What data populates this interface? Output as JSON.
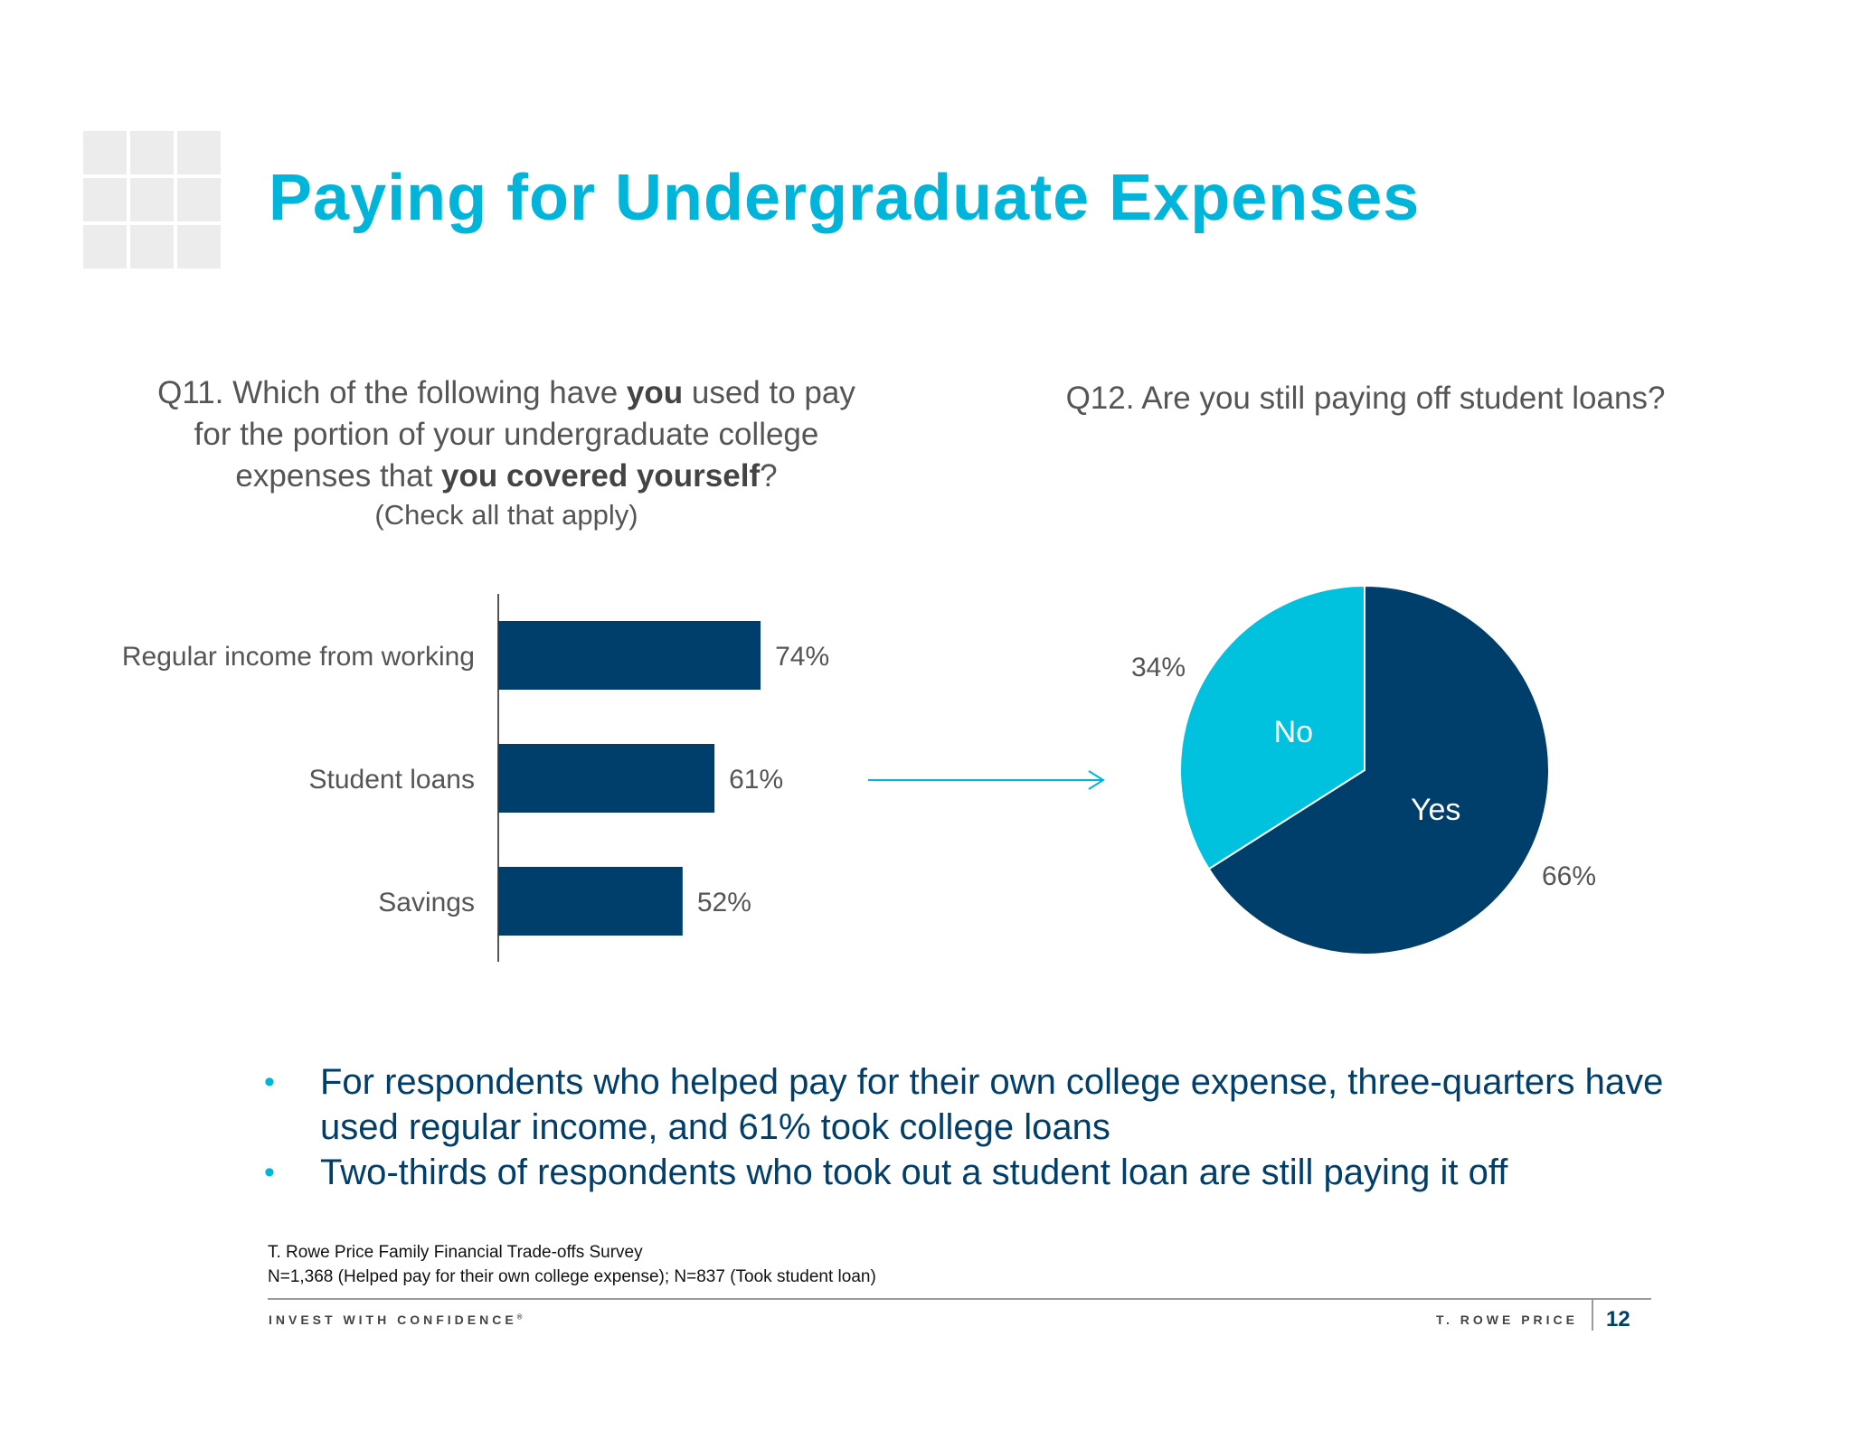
{
  "slide": {
    "title": "Paying for Undergraduate Expenses",
    "q11": {
      "line1_pre": "Q11. Which of the following have ",
      "line1_bold": "you",
      "line1_post": " used to pay",
      "line2": "for the portion of your undergraduate college",
      "line3_pre": "expenses that ",
      "line3_bold": "you covered yourself",
      "line3_post": "?",
      "note": "(Check all that apply)"
    },
    "q12": "Q12. Are you still paying off student loans?",
    "bullets": [
      "For respondents who helped pay for their own college expense, three-quarters have used regular income, and 61% took college loans",
      "Two-thirds of respondents who took out a student loan are still paying it off"
    ],
    "bullet_char": "•",
    "source_line1": "T. Rowe Price Family Financial Trade-offs Survey",
    "source_line2": "N=1,368 (Helped pay for their own college expense); N=837 (Took student loan)",
    "footer_left": "INVEST WITH CONFIDENCE",
    "footer_reg": "®",
    "footer_right": "T. ROWE PRICE",
    "page_number": "12"
  },
  "colors": {
    "title": "#00b5d9",
    "bar": "#003f6b",
    "pie_yes": "#003f6b",
    "pie_no": "#00c1de",
    "arrow": "#00b5d9"
  },
  "chart_data": [
    {
      "type": "bar",
      "orientation": "horizontal",
      "categories": [
        "Regular income from working",
        "Student loans",
        "Savings"
      ],
      "values": [
        74,
        61,
        52
      ],
      "value_labels": [
        "74%",
        "61%",
        "52%"
      ],
      "xlim": [
        0,
        100
      ],
      "grid": false,
      "legend": "none"
    },
    {
      "type": "pie",
      "labels": [
        "Yes",
        "No"
      ],
      "values": [
        66,
        34
      ],
      "value_labels": [
        "66%",
        "34%"
      ],
      "legend": "none"
    }
  ]
}
